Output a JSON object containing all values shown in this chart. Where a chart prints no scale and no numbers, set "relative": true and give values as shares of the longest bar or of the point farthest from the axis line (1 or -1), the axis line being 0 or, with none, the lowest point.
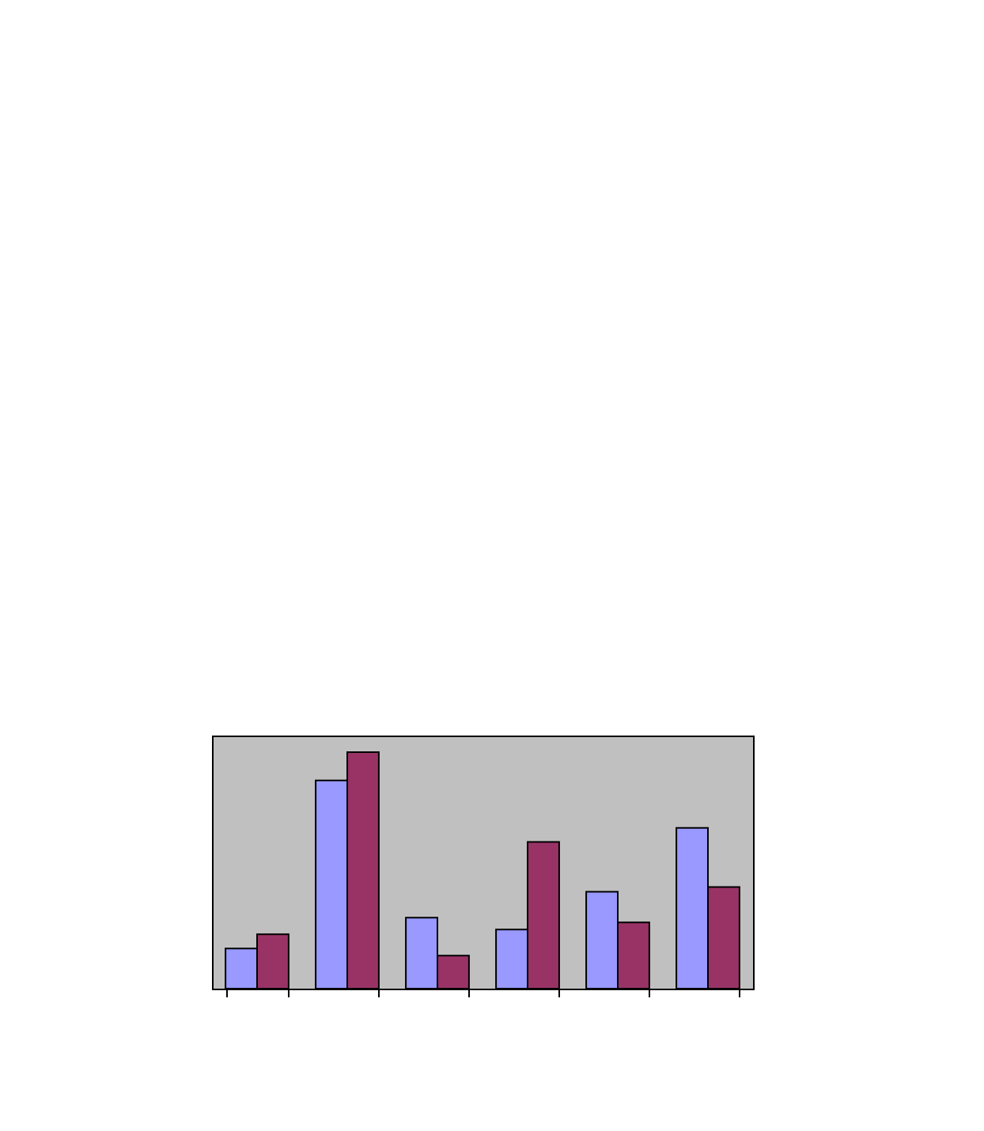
{
  "chart_data": {
    "type": "bar",
    "relative": true,
    "categories": [
      null,
      null,
      null,
      null,
      null,
      null
    ],
    "series": [
      {
        "color": "#9999ff",
        "values": [
          0.17,
          0.88,
          0.3,
          0.25,
          0.41,
          0.68
        ]
      },
      {
        "color": "#993366",
        "values": [
          0.23,
          1,
          0.14,
          0.62,
          0.28,
          0.43
        ]
      }
    ]
  }
}
